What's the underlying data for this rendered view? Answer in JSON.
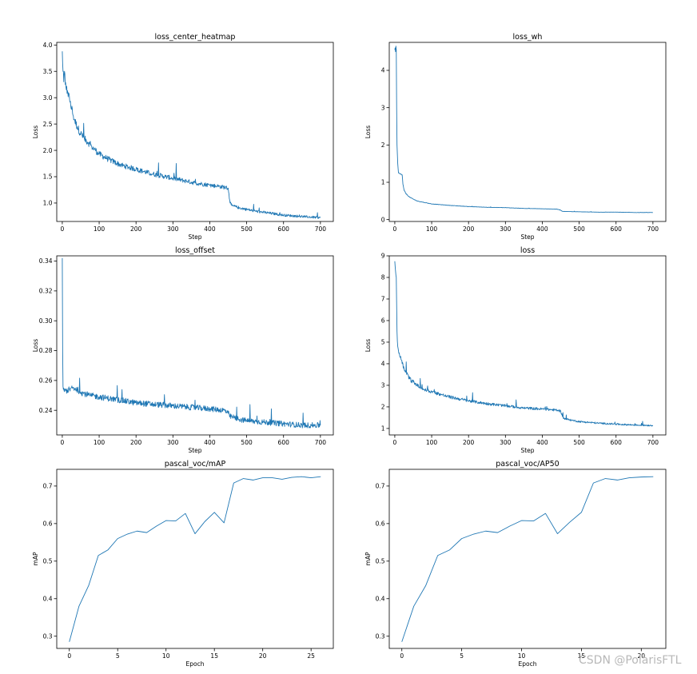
{
  "watermark": "CSDN @PolarisFTL",
  "chart_data": [
    {
      "type": "line",
      "title": "loss_center_heatmap",
      "xlabel": "Step",
      "ylabel": "Loss",
      "xlim": [
        -15,
        735
      ],
      "ylim": [
        0.65,
        4.05
      ],
      "xticks": [
        0,
        100,
        200,
        300,
        400,
        500,
        600,
        700
      ],
      "yticks": [
        1.0,
        1.5,
        2.0,
        2.5,
        3.0,
        3.5,
        4.0
      ],
      "ytick_labels": [
        "1.0",
        "1.5",
        "2.0",
        "2.5",
        "3.0",
        "3.5",
        "4.0"
      ],
      "grid": false,
      "color": "#1f77b4",
      "series": [
        {
          "x": [
            0,
            2,
            4,
            6,
            8,
            10,
            15,
            20,
            30,
            40,
            50,
            60,
            70,
            80,
            90,
            100,
            120,
            140,
            160,
            180,
            200,
            220,
            240,
            260,
            280,
            300,
            320,
            340,
            360,
            380,
            400,
            420,
            440,
            450,
            455,
            460,
            480,
            500,
            520,
            540,
            560,
            580,
            600,
            620,
            640,
            660,
            680,
            700
          ],
          "y": [
            3.88,
            3.5,
            3.3,
            3.5,
            3.25,
            3.2,
            3.1,
            2.95,
            2.65,
            2.45,
            2.32,
            2.22,
            2.15,
            2.07,
            2.0,
            1.93,
            1.85,
            1.78,
            1.72,
            1.68,
            1.64,
            1.6,
            1.56,
            1.53,
            1.5,
            1.47,
            1.44,
            1.41,
            1.38,
            1.36,
            1.34,
            1.32,
            1.3,
            1.28,
            1.0,
            0.95,
            0.91,
            0.88,
            0.85,
            0.83,
            0.81,
            0.79,
            0.77,
            0.76,
            0.75,
            0.74,
            0.73,
            0.72
          ]
        }
      ]
    },
    {
      "type": "line",
      "title": "loss_wh",
      "xlabel": "Step",
      "ylabel": "Loss",
      "xlim": [
        -15,
        735
      ],
      "ylim": [
        -0.05,
        4.75
      ],
      "xticks": [
        0,
        100,
        200,
        300,
        400,
        500,
        600,
        700
      ],
      "yticks": [
        0,
        1,
        2,
        3,
        4
      ],
      "ytick_labels": [
        "0",
        "1",
        "2",
        "3",
        "4"
      ],
      "grid": false,
      "color": "#1f77b4",
      "series": [
        {
          "x": [
            0,
            1,
            2,
            3,
            4,
            5,
            6,
            8,
            10,
            15,
            20,
            22,
            25,
            30,
            40,
            50,
            60,
            80,
            100,
            150,
            200,
            250,
            300,
            350,
            400,
            440,
            450,
            455,
            500,
            550,
            600,
            650,
            700
          ],
          "y": [
            4.55,
            4.6,
            4.5,
            4.65,
            4.55,
            3.0,
            2.0,
            1.5,
            1.25,
            1.22,
            1.2,
            0.95,
            0.8,
            0.7,
            0.6,
            0.55,
            0.5,
            0.46,
            0.42,
            0.38,
            0.35,
            0.33,
            0.32,
            0.3,
            0.29,
            0.28,
            0.25,
            0.22,
            0.21,
            0.2,
            0.2,
            0.19,
            0.19
          ]
        }
      ]
    },
    {
      "type": "line",
      "title": "loss_offset",
      "xlabel": "Step",
      "ylabel": "Loss",
      "xlim": [
        -15,
        735
      ],
      "ylim": [
        0.2235,
        0.3435
      ],
      "xticks": [
        0,
        100,
        200,
        300,
        400,
        500,
        600,
        700
      ],
      "yticks": [
        0.24,
        0.26,
        0.28,
        0.3,
        0.32,
        0.34
      ],
      "ytick_labels": [
        "0.24",
        "0.26",
        "0.28",
        "0.30",
        "0.32",
        "0.34"
      ],
      "grid": false,
      "color": "#1f77b4",
      "series": [
        {
          "x": [
            0,
            1,
            2,
            3,
            5,
            10,
            20,
            30,
            40,
            50,
            75,
            100,
            150,
            200,
            250,
            300,
            350,
            400,
            440,
            450,
            455,
            480,
            500,
            550,
            600,
            650,
            700
          ],
          "y": [
            0.342,
            0.28,
            0.256,
            0.254,
            0.253,
            0.253,
            0.254,
            0.255,
            0.254,
            0.252,
            0.25,
            0.249,
            0.247,
            0.245,
            0.244,
            0.243,
            0.242,
            0.241,
            0.24,
            0.238,
            0.236,
            0.234,
            0.233,
            0.232,
            0.231,
            0.23,
            0.23
          ]
        }
      ]
    },
    {
      "type": "line",
      "title": "loss",
      "xlabel": "Step",
      "ylabel": "Loss",
      "xlim": [
        -15,
        735
      ],
      "ylim": [
        0.7,
        9.0
      ],
      "xticks": [
        0,
        100,
        200,
        300,
        400,
        500,
        600,
        700
      ],
      "yticks": [
        1,
        2,
        3,
        4,
        5,
        6,
        7,
        8,
        9
      ],
      "ytick_labels": [
        "1",
        "2",
        "3",
        "4",
        "5",
        "6",
        "7",
        "8",
        "9"
      ],
      "grid": false,
      "color": "#1f77b4",
      "series": [
        {
          "x": [
            0,
            2,
            4,
            6,
            8,
            10,
            12,
            15,
            20,
            30,
            40,
            50,
            60,
            70,
            80,
            90,
            100,
            120,
            140,
            160,
            180,
            200,
            250,
            300,
            350,
            400,
            440,
            450,
            455,
            460,
            480,
            500,
            550,
            600,
            650,
            700
          ],
          "y": [
            8.75,
            8.3,
            8.0,
            5.5,
            4.8,
            4.6,
            4.5,
            4.3,
            4.0,
            3.6,
            3.3,
            3.15,
            3.0,
            2.9,
            2.8,
            2.75,
            2.7,
            2.6,
            2.5,
            2.42,
            2.35,
            2.28,
            2.15,
            2.05,
            1.95,
            1.9,
            1.85,
            1.8,
            1.55,
            1.45,
            1.38,
            1.32,
            1.25,
            1.2,
            1.16,
            1.14
          ]
        }
      ]
    },
    {
      "type": "line",
      "title": "pascal_voc/mAP",
      "xlabel": "Epoch",
      "ylabel": "mAP",
      "xlim": [
        -1.3,
        27.3
      ],
      "ylim": [
        0.2675,
        0.7445
      ],
      "xticks": [
        0,
        5,
        10,
        15,
        20,
        25
      ],
      "yticks": [
        0.3,
        0.4,
        0.5,
        0.6,
        0.7
      ],
      "ytick_labels": [
        "0.3",
        "0.4",
        "0.5",
        "0.6",
        "0.7"
      ],
      "grid": false,
      "color": "#1f77b4",
      "series": [
        {
          "x": [
            0,
            1,
            2,
            3,
            4,
            5,
            6,
            7,
            8,
            9,
            10,
            11,
            12,
            13,
            14,
            15,
            16,
            17,
            18,
            19,
            20,
            21,
            22,
            23,
            24,
            25,
            26
          ],
          "y": [
            0.285,
            0.38,
            0.435,
            0.515,
            0.53,
            0.56,
            0.572,
            0.58,
            0.576,
            0.593,
            0.608,
            0.607,
            0.627,
            0.573,
            0.605,
            0.63,
            0.602,
            0.708,
            0.72,
            0.716,
            0.722,
            0.722,
            0.718,
            0.723,
            0.725,
            0.722,
            0.725
          ]
        }
      ]
    },
    {
      "type": "line",
      "title": "pascal_voc/AP50",
      "xlabel": "Epoch",
      "ylabel": "mAP",
      "xlim": [
        -1.05,
        22.05
      ],
      "ylim": [
        0.2675,
        0.7445
      ],
      "xticks": [
        0,
        5,
        10,
        15,
        20
      ],
      "yticks": [
        0.3,
        0.4,
        0.5,
        0.6,
        0.7
      ],
      "ytick_labels": [
        "0.3",
        "0.4",
        "0.5",
        "0.6",
        "0.7"
      ],
      "grid": false,
      "color": "#1f77b4",
      "series": [
        {
          "x": [
            0,
            1,
            2,
            3,
            4,
            5,
            6,
            7,
            8,
            9,
            10,
            11,
            12,
            13,
            14,
            15,
            16,
            17,
            18,
            19,
            20,
            21
          ],
          "y": [
            0.285,
            0.38,
            0.435,
            0.515,
            0.53,
            0.56,
            0.572,
            0.58,
            0.576,
            0.593,
            0.608,
            0.607,
            0.627,
            0.573,
            0.603,
            0.63,
            0.708,
            0.72,
            0.716,
            0.722,
            0.724,
            0.725
          ]
        }
      ]
    }
  ]
}
